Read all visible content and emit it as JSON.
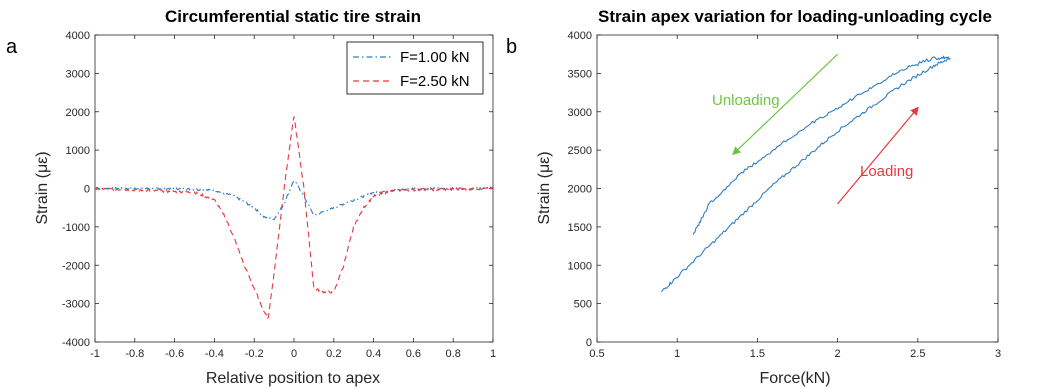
{
  "chart_data": [
    {
      "type": "line",
      "panel_label": "a",
      "title": "Circumferential static tire strain",
      "xlabel": "Relative position to apex",
      "ylabel": "Strain (με)",
      "xlim": [
        -1,
        1
      ],
      "ylim": [
        -4000,
        4000
      ],
      "xticks": [
        "-1",
        "-0.8",
        "-0.6",
        "-0.4",
        "-0.2",
        "0",
        "0.2",
        "0.4",
        "0.6",
        "0.8",
        "1"
      ],
      "yticks": [
        "-4000",
        "-3000",
        "-2000",
        "-1000",
        "0",
        "1000",
        "2000",
        "3000",
        "4000"
      ],
      "grid": false,
      "legend_position": "top-right",
      "series": [
        {
          "name": "F=1.00 kN",
          "color": "#2f7ec2",
          "style": "dash-dot",
          "x": [
            -1,
            -0.6,
            -0.4,
            -0.3,
            -0.2,
            -0.15,
            -0.1,
            -0.05,
            0,
            0.05,
            0.1,
            0.15,
            0.2,
            0.3,
            0.4,
            0.6,
            1
          ],
          "y": [
            0,
            0,
            -50,
            -200,
            -500,
            -750,
            -800,
            -400,
            220,
            -200,
            -700,
            -600,
            -500,
            -300,
            -100,
            0,
            0
          ]
        },
        {
          "name": "F=2.50 kN",
          "color": "#e8383d",
          "style": "dashed",
          "x": [
            -1,
            -0.5,
            -0.4,
            -0.35,
            -0.3,
            -0.25,
            -0.2,
            -0.15,
            -0.13,
            -0.1,
            -0.05,
            0,
            0.05,
            0.1,
            0.15,
            0.2,
            0.25,
            0.3,
            0.35,
            0.4,
            0.5,
            1
          ],
          "y": [
            0,
            -100,
            -300,
            -700,
            -1300,
            -2000,
            -2600,
            -3200,
            -3400,
            -2200,
            0,
            1900,
            0,
            -2600,
            -2700,
            -2700,
            -2000,
            -1000,
            -500,
            -200,
            -50,
            0
          ]
        }
      ]
    },
    {
      "type": "line",
      "panel_label": "b",
      "title": "Strain apex variation for loading-unloading cycle",
      "xlabel": "Force(kN)",
      "ylabel": "Strain (με)",
      "xlim": [
        0.5,
        3
      ],
      "ylim": [
        0,
        4000
      ],
      "xticks": [
        "0.5",
        "1",
        "1.5",
        "2",
        "2.5",
        "3"
      ],
      "yticks": [
        "0",
        "500",
        "1000",
        "1500",
        "2000",
        "2500",
        "3000",
        "3500",
        "4000"
      ],
      "grid": false,
      "series": [
        {
          "name": "",
          "color": "#2f7ec2",
          "style": "solid",
          "x": [
            0.9,
            1.0,
            1.2,
            1.4,
            1.6,
            1.8,
            2.0,
            2.2,
            2.4,
            2.6,
            2.7,
            2.6,
            2.4,
            2.2,
            2.0,
            1.8,
            1.6,
            1.4,
            1.2,
            1.1
          ],
          "y": [
            650,
            850,
            1250,
            1650,
            2050,
            2400,
            2750,
            3050,
            3350,
            3600,
            3700,
            3700,
            3550,
            3300,
            3050,
            2800,
            2500,
            2200,
            1800,
            1400
          ]
        }
      ],
      "annotations": [
        {
          "text": "Unloading",
          "color": "#6cc644",
          "arrow_from": [
            2.0,
            3750
          ],
          "arrow_to": [
            1.35,
            2450
          ]
        },
        {
          "text": "Loading",
          "color": "#e8383d",
          "arrow_from": [
            2.0,
            1800
          ],
          "arrow_to": [
            2.5,
            3050
          ]
        }
      ]
    }
  ]
}
